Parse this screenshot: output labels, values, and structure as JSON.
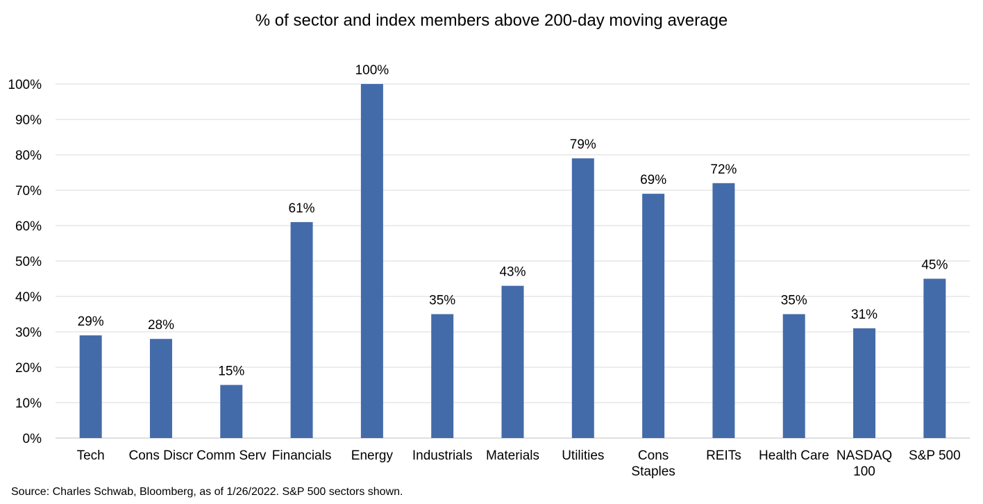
{
  "chart_data": {
    "type": "bar",
    "title": "% of sector and index members above 200-day moving average",
    "xlabel": "",
    "ylabel": "",
    "categories": [
      "Tech",
      "Cons Discr",
      "Comm Serv",
      "Financials",
      "Energy",
      "Industrials",
      "Materials",
      "Utilities",
      "Cons Staples",
      "REITs",
      "Health Care",
      "NASDAQ 100",
      "S&P 500"
    ],
    "category_lines": [
      [
        "Tech"
      ],
      [
        "Cons Discr"
      ],
      [
        "Comm Serv"
      ],
      [
        "Financials"
      ],
      [
        "Energy"
      ],
      [
        "Industrials"
      ],
      [
        "Materials"
      ],
      [
        "Utilities"
      ],
      [
        "Cons",
        "Staples"
      ],
      [
        "REITs"
      ],
      [
        "Health Care"
      ],
      [
        "NASDAQ",
        "100"
      ],
      [
        "S&P 500"
      ]
    ],
    "values": [
      29,
      28,
      15,
      61,
      100,
      35,
      43,
      79,
      69,
      72,
      35,
      31,
      45
    ],
    "value_labels": [
      "29%",
      "28%",
      "15%",
      "61%",
      "100%",
      "35%",
      "43%",
      "79%",
      "69%",
      "72%",
      "35%",
      "31%",
      "45%"
    ],
    "ylim": [
      0,
      100
    ],
    "yticks": [
      0,
      10,
      20,
      30,
      40,
      50,
      60,
      70,
      80,
      90,
      100
    ],
    "ytick_labels": [
      "0%",
      "10%",
      "20%",
      "30%",
      "40%",
      "50%",
      "60%",
      "70%",
      "80%",
      "90%",
      "100%"
    ],
    "grid": true,
    "legend": "none",
    "bar_color": "#446BA9",
    "grid_color": "#d9d9d9",
    "source": "Source: Charles Schwab, Bloomberg, as of 1/26/2022.  S&P 500 sectors shown."
  }
}
